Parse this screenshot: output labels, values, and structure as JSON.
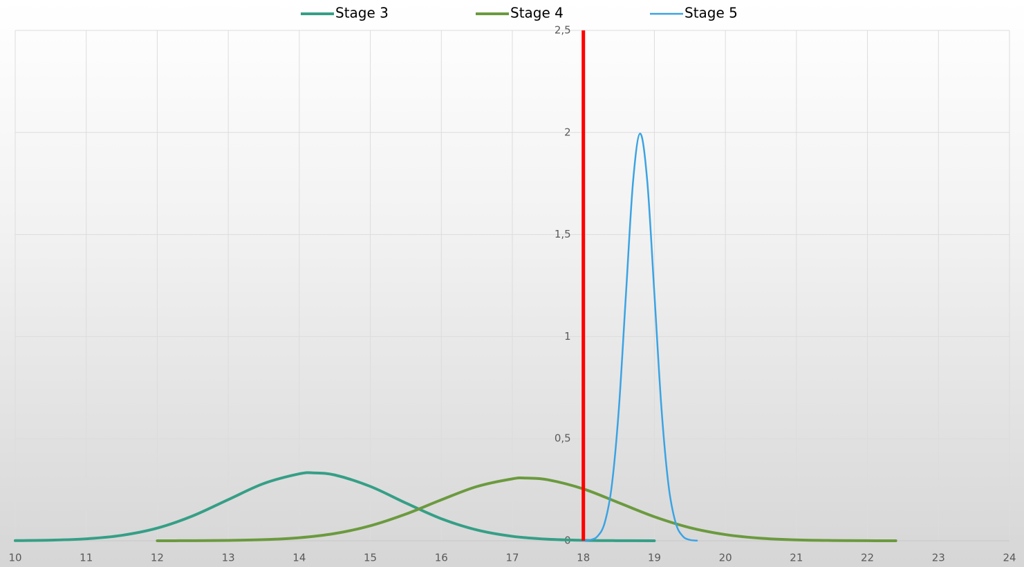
{
  "chart_data": {
    "type": "line",
    "series": [
      {
        "name": "Stage 3",
        "color": "#359f86",
        "x": [
          10,
          10.5,
          11,
          11.5,
          12,
          12.5,
          13,
          13.5,
          14,
          14.2,
          14.5,
          15,
          15.5,
          16,
          16.5,
          17,
          17.5,
          18,
          18.5,
          19
        ],
        "values": [
          0.0007,
          0.0029,
          0.0095,
          0.0265,
          0.0619,
          0.1219,
          0.2016,
          0.2804,
          0.3278,
          0.3324,
          0.3222,
          0.2662,
          0.1849,
          0.1079,
          0.053,
          0.0218,
          0.0076,
          0.0022,
          0.0005,
          0.0001
        ]
      },
      {
        "name": "Stage 4",
        "color": "#6b9a3e",
        "x": [
          12,
          12.5,
          13,
          13.5,
          14,
          14.5,
          15,
          15.5,
          16,
          16.5,
          17,
          17.2,
          17.5,
          18,
          18.5,
          19,
          19.5,
          20,
          20.5,
          21,
          21.5,
          22,
          22.4
        ],
        "values": [
          0.0001,
          0.0004,
          0.0017,
          0.0053,
          0.0148,
          0.0355,
          0.0733,
          0.1305,
          0.2004,
          0.2655,
          0.3033,
          0.3069,
          0.2988,
          0.254,
          0.1861,
          0.1177,
          0.0642,
          0.0302,
          0.0122,
          0.0043,
          0.0013,
          0.0003,
          0.0001
        ]
      },
      {
        "name": "Stage 5",
        "color": "#3aa3e3",
        "x": [
          18,
          18.1,
          18.2,
          18.3,
          18.4,
          18.5,
          18.6,
          18.7,
          18.8,
          18.9,
          19,
          19.1,
          19.2,
          19.3,
          19.4,
          19.5,
          19.6
        ],
        "values": [
          0.0007,
          0.0044,
          0.0222,
          0.0876,
          0.2699,
          0.6476,
          1.2098,
          1.7603,
          1.9947,
          1.7603,
          1.2098,
          0.6476,
          0.2699,
          0.0876,
          0.0222,
          0.0044,
          0.0007
        ]
      }
    ],
    "vline": {
      "x": 18,
      "color": "#ff0000"
    },
    "xlim": [
      10,
      24
    ],
    "xticks": [
      10,
      11,
      12,
      13,
      14,
      15,
      16,
      17,
      18,
      19,
      20,
      21,
      22,
      23,
      24
    ],
    "ylim": [
      0,
      2.5
    ],
    "yticks": [
      0,
      {
        "value": 0.5,
        "label": "0,5"
      },
      1,
      {
        "value": 1.5,
        "label": "1,5"
      },
      2,
      {
        "value": 2.5,
        "label": "2,5"
      }
    ],
    "yaxis_at": 18,
    "grid": true,
    "legend": "top"
  }
}
